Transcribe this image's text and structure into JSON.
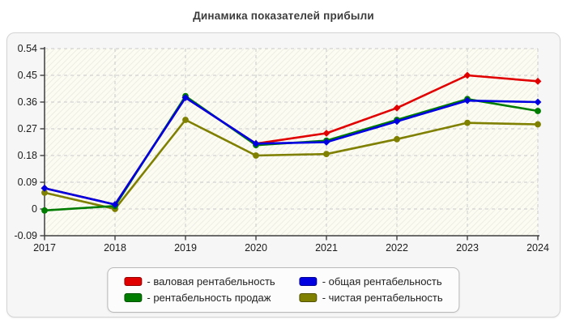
{
  "page": {
    "title": "Динамика показателей прибыли"
  },
  "chart_data": {
    "type": "line",
    "title": "Динамика показателей прибыли",
    "categories": [
      "2017",
      "2018",
      "2019",
      "2020",
      "2021",
      "2022",
      "2023",
      "2024"
    ],
    "series": [
      {
        "name": "валовая рентабельность",
        "color": "#e10000",
        "marker": "diamond",
        "values": [
          0.07,
          0.015,
          0.375,
          0.22,
          0.255,
          0.34,
          0.45,
          0.43
        ]
      },
      {
        "name": "чистая рентабельность",
        "color": "#7f7f00",
        "marker": "circle",
        "values": [
          0.055,
          0.0,
          0.3,
          0.18,
          0.185,
          0.235,
          0.29,
          0.285
        ]
      },
      {
        "name": "рентабельность продаж",
        "color": "#007d00",
        "marker": "circle",
        "values": [
          -0.005,
          0.01,
          0.38,
          0.215,
          0.23,
          0.3,
          0.37,
          0.33
        ]
      },
      {
        "name": "общая рентабельность",
        "color": "#0000e1",
        "marker": "diamond",
        "values": [
          0.07,
          0.015,
          0.375,
          0.22,
          0.225,
          0.295,
          0.365,
          0.36
        ]
      }
    ],
    "xlabel": "",
    "ylabel": "",
    "ylim": [
      -0.09,
      0.54
    ],
    "ytick_step": 0.09,
    "yticks": [
      "0.54",
      "0.45",
      "0.36",
      "0.27",
      "0.18",
      "0.09",
      "0",
      "-0.09"
    ],
    "grid": true,
    "grid_style": "dashed",
    "legend_position": "bottom"
  },
  "legend": {
    "items": [
      {
        "label": "- валовая рентабельность",
        "color": "#e10000"
      },
      {
        "label": "- общая рентабельность",
        "color": "#0000e1"
      },
      {
        "label": "- рентабельность продаж",
        "color": "#007d00"
      },
      {
        "label": "- чистая рентабельность",
        "color": "#7f7f00"
      }
    ]
  },
  "colors": {
    "axis": "#3f3f3f",
    "gridline": "#c9c9c9",
    "tick_label": "#1c1c1c",
    "plot_bg": "#fcfcf3",
    "plot_hatch": "#e7e7de",
    "panel_bg": "#f6f6f6"
  }
}
